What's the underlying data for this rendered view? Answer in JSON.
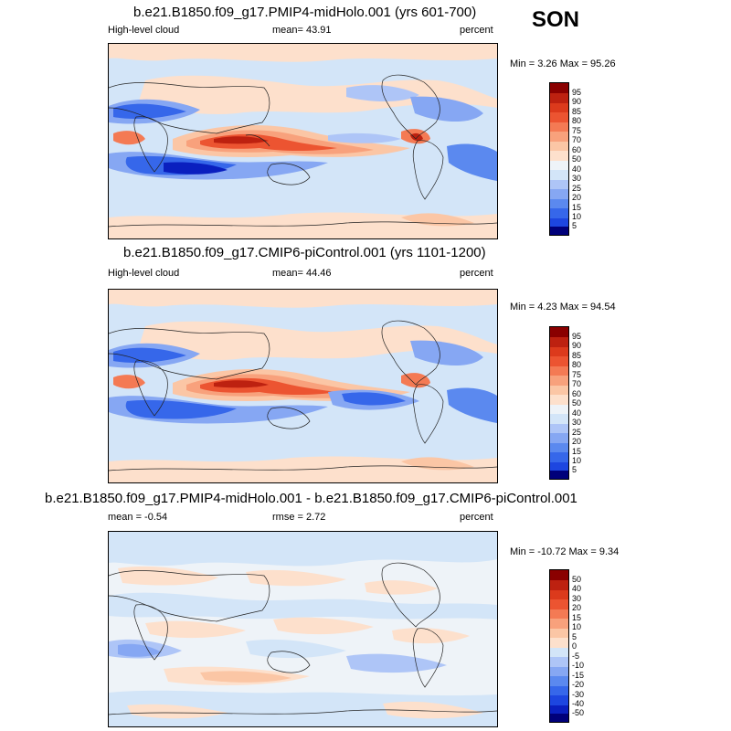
{
  "season": "SON",
  "colors": {
    "blues": [
      "#00007a",
      "#0a1fbf",
      "#1d46e0",
      "#3667ea",
      "#5b89ef",
      "#86a7f3",
      "#aec5f7",
      "#d3e5f8"
    ],
    "neutral": "#eef3f8",
    "reds": [
      "#fde0cc",
      "#fbc6a5",
      "#f8a17c",
      "#f47a54",
      "#ec5431",
      "#dc3a1c",
      "#bd2110",
      "#8a0000"
    ]
  },
  "panels": [
    {
      "title": "b.e21.B1850.f09_g17.PMIP4-midHolo.001 (yrs 601-700)",
      "left_label": "High-level cloud",
      "center_label": "mean=  43.91",
      "right_label": "percent",
      "minmax": "Min =   3.26 Max =  95.26",
      "colorbar": [
        "95",
        "90",
        "85",
        "80",
        "75",
        "70",
        "60",
        "50",
        "40",
        "30",
        "25",
        "20",
        "15",
        "10",
        "5"
      ]
    },
    {
      "title": "b.e21.B1850.f09_g17.CMIP6-piControl.001 (yrs 1101-1200)",
      "left_label": "High-level cloud",
      "center_label": "mean=  44.46",
      "right_label": "percent",
      "minmax": "Min =   4.23 Max =  94.54",
      "colorbar": [
        "95",
        "90",
        "85",
        "80",
        "75",
        "70",
        "60",
        "50",
        "40",
        "30",
        "25",
        "20",
        "15",
        "10",
        "5"
      ]
    },
    {
      "title": "b.e21.B1850.f09_g17.PMIP4-midHolo.001 - b.e21.B1850.f09_g17.CMIP6-piControl.001",
      "left_label": "mean =  -0.54",
      "center_label": "rmse =   2.72",
      "right_label": "percent",
      "minmax": "Min = -10.72 Max =   9.34",
      "colorbar": [
        "50",
        "40",
        "30",
        "20",
        "15",
        "10",
        "5",
        "0",
        "-5",
        "-10",
        "-15",
        "-20",
        "-30",
        "-40",
        "-50"
      ]
    }
  ]
}
